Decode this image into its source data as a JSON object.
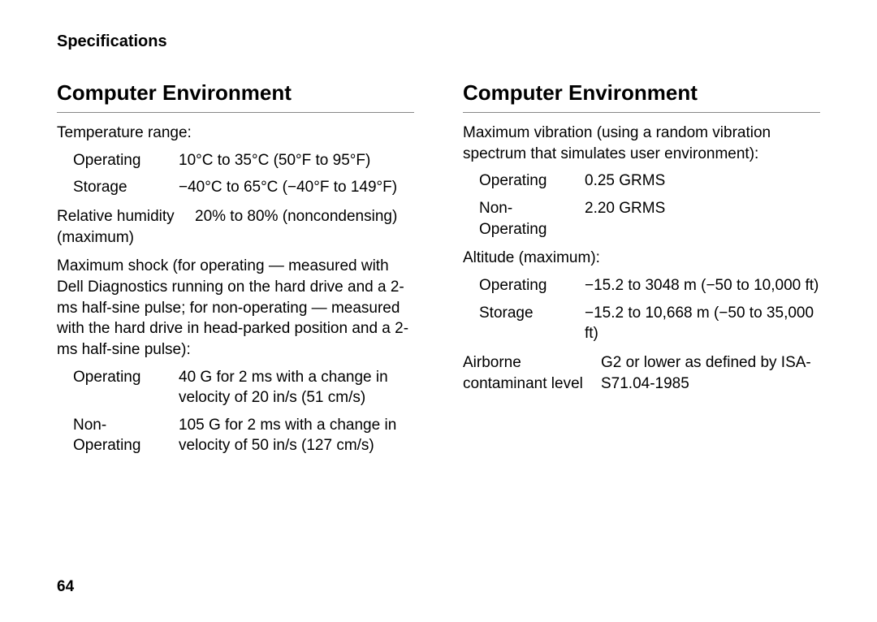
{
  "header": {
    "title": "Specifications"
  },
  "pageNumber": "64",
  "left": {
    "heading": "Computer Environment",
    "tempRange": {
      "intro": "Temperature range:",
      "rows": [
        {
          "label": "Operating",
          "value": "10°C to 35°C (50°F to 95°F)"
        },
        {
          "label": "Storage",
          "value": "−40°C to 65°C (−40°F to 149°F)"
        }
      ]
    },
    "humidity": {
      "label": "Relative humidity (maximum)",
      "value": "20% to 80% (noncondensing)"
    },
    "shock": {
      "intro": "Maximum shock (for operating — measured with Dell Diagnostics running on the hard drive and a 2-ms half-sine pulse; for non-operating — measured with the hard drive in head-parked position and a 2-ms half-sine pulse):",
      "rows": [
        {
          "label": "Operating",
          "value": "40 G for 2 ms with a change in velocity of 20 in/s (51 cm/s)"
        },
        {
          "label": "Non-Operating",
          "value": "105 G for 2 ms with a change in velocity of 50 in/s (127 cm/s)"
        }
      ]
    }
  },
  "right": {
    "heading": "Computer Environment",
    "vibration": {
      "intro": "Maximum vibration (using a random vibration spectrum that simulates user environment):",
      "rows": [
        {
          "label": "Operating",
          "value": "0.25 GRMS"
        },
        {
          "label": "Non-Operating",
          "value": "2.20 GRMS"
        }
      ]
    },
    "altitude": {
      "intro": "Altitude (maximum):",
      "rows": [
        {
          "label": "Operating",
          "value": "−15.2 to 3048 m (−50 to 10,000 ft)"
        },
        {
          "label": "Storage",
          "value": "−15.2 to 10,668 m (−50 to 35,000 ft)"
        }
      ]
    },
    "airborne": {
      "label": "Airborne contaminant level",
      "value": "G2 or lower as defined by ISA-S71.04-1985"
    }
  }
}
